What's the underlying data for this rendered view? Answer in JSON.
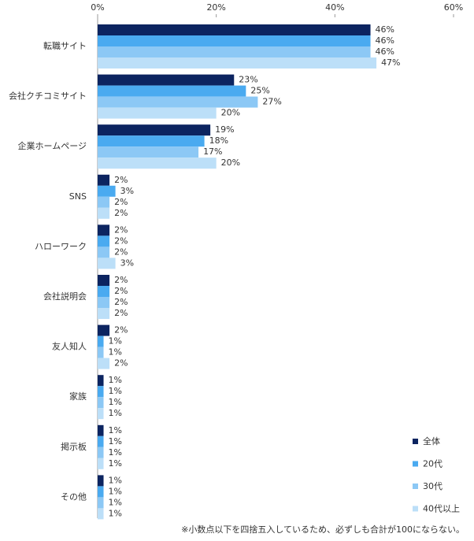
{
  "chart_data": {
    "type": "hbar",
    "categories": [
      "転職サイト",
      "会社クチコミサイト",
      "企業ホームページ",
      "SNS",
      "ハローワーク",
      "会社説明会",
      "友人知人",
      "家族",
      "掲示板",
      "その他"
    ],
    "series": [
      {
        "name": "全体",
        "color": "#0c2460",
        "values": [
          46,
          23,
          19,
          2,
          2,
          2,
          2,
          1,
          1,
          1
        ],
        "value_labels": [
          "46%",
          "23%",
          "19%",
          "2%",
          "2%",
          "2%",
          "2%",
          "1%",
          "1%",
          "1%"
        ]
      },
      {
        "name": "20代",
        "color": "#4aaaf0",
        "values": [
          46,
          25,
          18,
          3,
          2,
          2,
          1,
          1,
          1,
          1
        ],
        "value_labels": [
          "46%",
          "25%",
          "18%",
          "3%",
          "2%",
          "2%",
          "1%",
          "1%",
          "1%",
          "1%"
        ]
      },
      {
        "name": "30代",
        "color": "#8cc8f5",
        "values": [
          46,
          27,
          17,
          2,
          2,
          2,
          1,
          1,
          1,
          1
        ],
        "value_labels": [
          "46%",
          "27%",
          "17%",
          "2%",
          "2%",
          "2%",
          "1%",
          "1%",
          "1%",
          "1%"
        ]
      },
      {
        "name": "40代以上",
        "color": "#bcdff8",
        "values": [
          47,
          20,
          20,
          2,
          3,
          2,
          2,
          1,
          1,
          1
        ],
        "value_labels": [
          "47%",
          "20%",
          "20%",
          "2%",
          "3%",
          "2%",
          "2%",
          "1%",
          "1%",
          "1%"
        ]
      }
    ],
    "xlim": [
      0,
      60
    ],
    "xticks": [
      {
        "value": 0,
        "label": "0%"
      },
      {
        "value": 20,
        "label": "20%"
      },
      {
        "value": 40,
        "label": "40%"
      },
      {
        "value": 60,
        "label": "60%"
      }
    ],
    "legend": "lower right",
    "note": "※小数点以下を四捨五入しているため、必ずしも合計が100にならない。"
  }
}
